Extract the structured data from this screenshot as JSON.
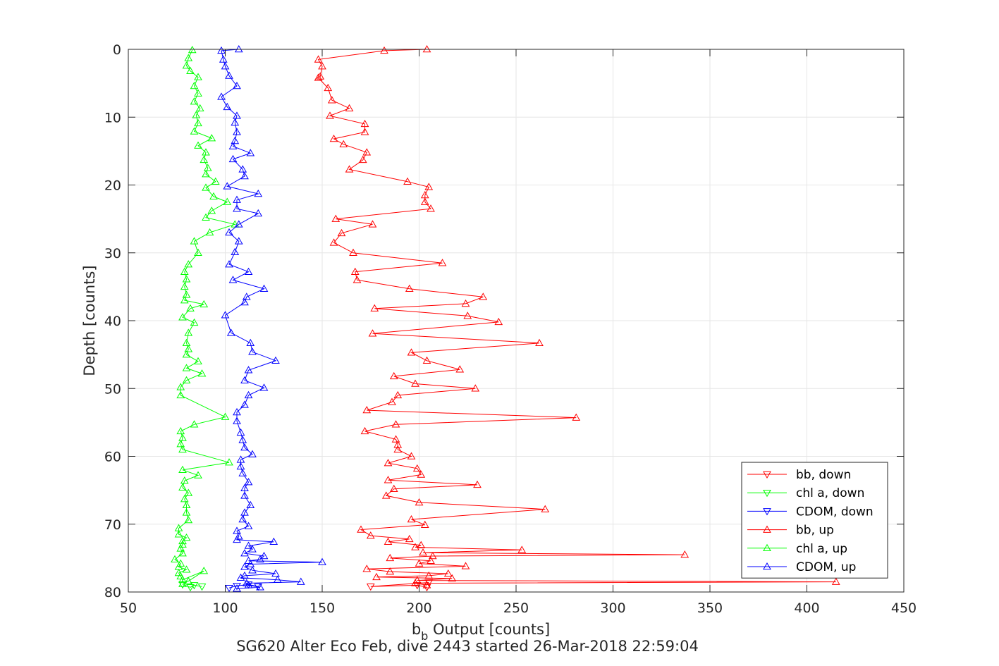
{
  "chart_data": {
    "type": "line",
    "title": "SG620 Alter Eco Feb, dive 2443 started 26-Mar-2018 22:59:04",
    "xlabel_main": "b",
    "xlabel_sub": "b",
    "xlabel_rest": " Output [counts]",
    "ylabel": "Depth [counts]",
    "xlim": [
      50,
      450
    ],
    "ylim": [
      0,
      80
    ],
    "y_reversed": true,
    "grid": true,
    "legend_position": "bottom-right",
    "xticks": [
      "50",
      "100",
      "150",
      "200",
      "250",
      "300",
      "350",
      "400",
      "450"
    ],
    "yticks": [
      "0",
      "10",
      "20",
      "30",
      "40",
      "50",
      "60",
      "70",
      "80"
    ],
    "colors": {
      "bb": "#ff0000",
      "chl": "#00ff00",
      "cdom": "#0000ff",
      "axis": "#262626",
      "grid": "#e6e6e6"
    },
    "legend": [
      {
        "label": "bb, down",
        "color": "#ff0000",
        "marker": "triangle-down"
      },
      {
        "label": "chl a, down",
        "color": "#00ff00",
        "marker": "triangle-down"
      },
      {
        "label": "CDOM, down",
        "color": "#0000ff",
        "marker": "triangle-down"
      },
      {
        "label": "bb, up",
        "color": "#ff0000",
        "marker": "triangle-up"
      },
      {
        "label": "chl a, up",
        "color": "#00ff00",
        "marker": "triangle-up"
      },
      {
        "label": "CDOM, up",
        "color": "#0000ff",
        "marker": "triangle-up"
      }
    ],
    "series": [
      {
        "name": "bb, down",
        "color": "#ff0000",
        "marker": "triangle-down",
        "x": [
          205,
          175,
          199,
          204
        ],
        "y": [
          78.6,
          79.2,
          79.0,
          79.3
        ]
      },
      {
        "name": "chl a, down",
        "color": "#00ff00",
        "marker": "triangle-down",
        "x": [
          78,
          82,
          84,
          88
        ],
        "y": [
          78.9,
          79.3,
          79.0,
          79.2
        ]
      },
      {
        "name": "CDOM, down",
        "color": "#0000ff",
        "marker": "triangle-down",
        "x": [
          102,
          106,
          112,
          117
        ],
        "y": [
          79.4,
          79.1,
          78.9,
          79.2
        ]
      },
      {
        "name": "bb, up",
        "color": "#ff0000",
        "marker": "triangle-up",
        "x": [
          204,
          182,
          148,
          150,
          149,
          148,
          153,
          155,
          164,
          154,
          172,
          172,
          156,
          161,
          173,
          171,
          164,
          194,
          205,
          203,
          203,
          206,
          157,
          176,
          160,
          156,
          166,
          212,
          167,
          168,
          195,
          233,
          224,
          177,
          225,
          241,
          176,
          262,
          196,
          204,
          221,
          187,
          198,
          229,
          189,
          186,
          173,
          281,
          188,
          172,
          188,
          189,
          189,
          196,
          184,
          199,
          201,
          184,
          230,
          187,
          183,
          200,
          265,
          196,
          203,
          170,
          175,
          195,
          184,
          201,
          198,
          253,
          202,
          337,
          207,
          185,
          206,
          200,
          224,
          173,
          185,
          215,
          205,
          178,
          217,
          199,
          415,
          198,
          204
        ],
        "y": [
          0,
          0.2,
          1.5,
          2.5,
          4.0,
          4.2,
          5.7,
          7.5,
          8.7,
          9.8,
          11.0,
          12.2,
          13.2,
          14.0,
          15.2,
          16.3,
          17.7,
          19.5,
          20.3,
          21.5,
          22.5,
          23.5,
          25.0,
          25.8,
          27.1,
          28.5,
          30.0,
          31.5,
          32.8,
          34.0,
          35.3,
          36.5,
          37.5,
          38.2,
          39.3,
          40.2,
          41.9,
          43.3,
          44.7,
          45.9,
          47.2,
          48.2,
          49.3,
          50.0,
          51.0,
          52.0,
          53.2,
          54.3,
          55.3,
          56.3,
          57.5,
          58.3,
          59.0,
          60.0,
          61.0,
          61.8,
          62.7,
          63.5,
          64.2,
          64.8,
          65.8,
          66.8,
          67.8,
          69.3,
          70.1,
          70.8,
          71.7,
          72.2,
          72.6,
          73.1,
          73.4,
          73.8,
          74.2,
          74.5,
          74.7,
          75.0,
          75.4,
          75.8,
          76.2,
          76.6,
          77.0,
          77.3,
          77.6,
          77.8,
          78.0,
          78.3,
          78.5,
          78.7,
          79.0
        ]
      },
      {
        "name": "chl a, up",
        "color": "#00ff00",
        "marker": "triangle-up",
        "x": [
          83,
          81,
          80,
          82,
          86,
          84,
          86,
          84,
          87,
          85,
          86,
          84,
          93,
          86,
          90,
          89,
          91,
          90,
          95,
          90,
          94,
          101,
          93,
          90,
          105,
          92,
          84,
          86,
          81,
          79,
          80,
          79,
          80,
          79,
          89,
          82,
          78,
          84,
          81,
          80,
          81,
          80,
          86,
          80,
          88,
          80,
          77,
          77,
          100,
          84,
          77,
          78,
          77,
          78,
          102,
          78,
          86,
          79,
          78,
          81,
          79,
          80,
          80,
          81,
          76,
          76,
          80,
          78,
          78,
          77,
          78,
          74,
          77,
          76,
          80,
          76,
          77,
          78,
          89,
          81,
          78
        ],
        "y": [
          0.1,
          1.3,
          2.4,
          3.2,
          4.1,
          5.4,
          6.5,
          7.7,
          8.7,
          9.7,
          10.9,
          12.1,
          13.1,
          14.2,
          15.2,
          16.3,
          17.5,
          18.4,
          19.5,
          20.4,
          21.7,
          22.5,
          23.8,
          24.8,
          25.8,
          27.0,
          28.3,
          30.0,
          31.7,
          32.8,
          33.9,
          35.0,
          36.2,
          37.0,
          37.6,
          38.2,
          39.5,
          40.3,
          41.8,
          43.3,
          44.2,
          45.0,
          46.0,
          47.0,
          47.8,
          48.8,
          49.8,
          51.0,
          54.2,
          55.3,
          56.3,
          57.3,
          58.2,
          59.0,
          60.9,
          62.0,
          62.8,
          63.6,
          64.6,
          65.4,
          66.3,
          67.2,
          68.3,
          69.4,
          70.6,
          71.5,
          72.0,
          72.5,
          73.0,
          73.6,
          74.3,
          75.2,
          75.8,
          76.3,
          76.7,
          77.2,
          77.7,
          78.2,
          76.9,
          78.4,
          78.8
        ]
      },
      {
        "name": "CDOM, up",
        "color": "#0000ff",
        "marker": "triangle-up",
        "x": [
          107,
          98,
          99,
          100,
          102,
          106,
          98,
          101,
          106,
          105,
          106,
          105,
          104,
          113,
          104,
          109,
          110,
          101,
          117,
          106,
          106,
          117,
          107,
          102,
          107,
          105,
          102,
          112,
          104,
          120,
          111,
          110,
          100,
          103,
          113,
          114,
          126,
          112,
          110,
          120,
          112,
          110,
          106,
          106,
          108,
          109,
          110,
          114,
          108,
          108,
          109,
          112,
          110,
          110,
          113,
          110,
          109,
          112,
          106,
          107,
          106,
          125,
          112,
          114,
          110,
          120,
          118,
          112,
          150,
          113,
          110,
          114,
          126,
          110,
          108,
          127,
          139,
          111,
          112,
          118,
          106
        ],
        "y": [
          0,
          0.2,
          1.5,
          2.5,
          3.9,
          5.4,
          7.0,
          8.5,
          9.8,
          10.8,
          12.2,
          13.5,
          14.3,
          15.3,
          16.2,
          17.7,
          18.7,
          20.2,
          21.3,
          22.2,
          23.5,
          24.2,
          25.8,
          27.0,
          28.3,
          29.9,
          31.7,
          32.8,
          34.0,
          35.3,
          36.5,
          37.3,
          39.2,
          41.8,
          43.3,
          44.6,
          45.9,
          47.3,
          48.8,
          49.9,
          51.0,
          52.4,
          53.5,
          54.8,
          56.5,
          57.6,
          58.7,
          59.7,
          60.5,
          61.5,
          62.5,
          63.8,
          64.7,
          65.8,
          67.2,
          68.3,
          69.3,
          70.3,
          71.0,
          71.8,
          72.3,
          72.6,
          73.2,
          73.7,
          74.3,
          74.7,
          75.2,
          75.4,
          75.6,
          75.9,
          76.3,
          76.8,
          77.3,
          77.6,
          77.9,
          78.2,
          78.5,
          78.7,
          79.0,
          79.3,
          79.5
        ]
      }
    ]
  }
}
